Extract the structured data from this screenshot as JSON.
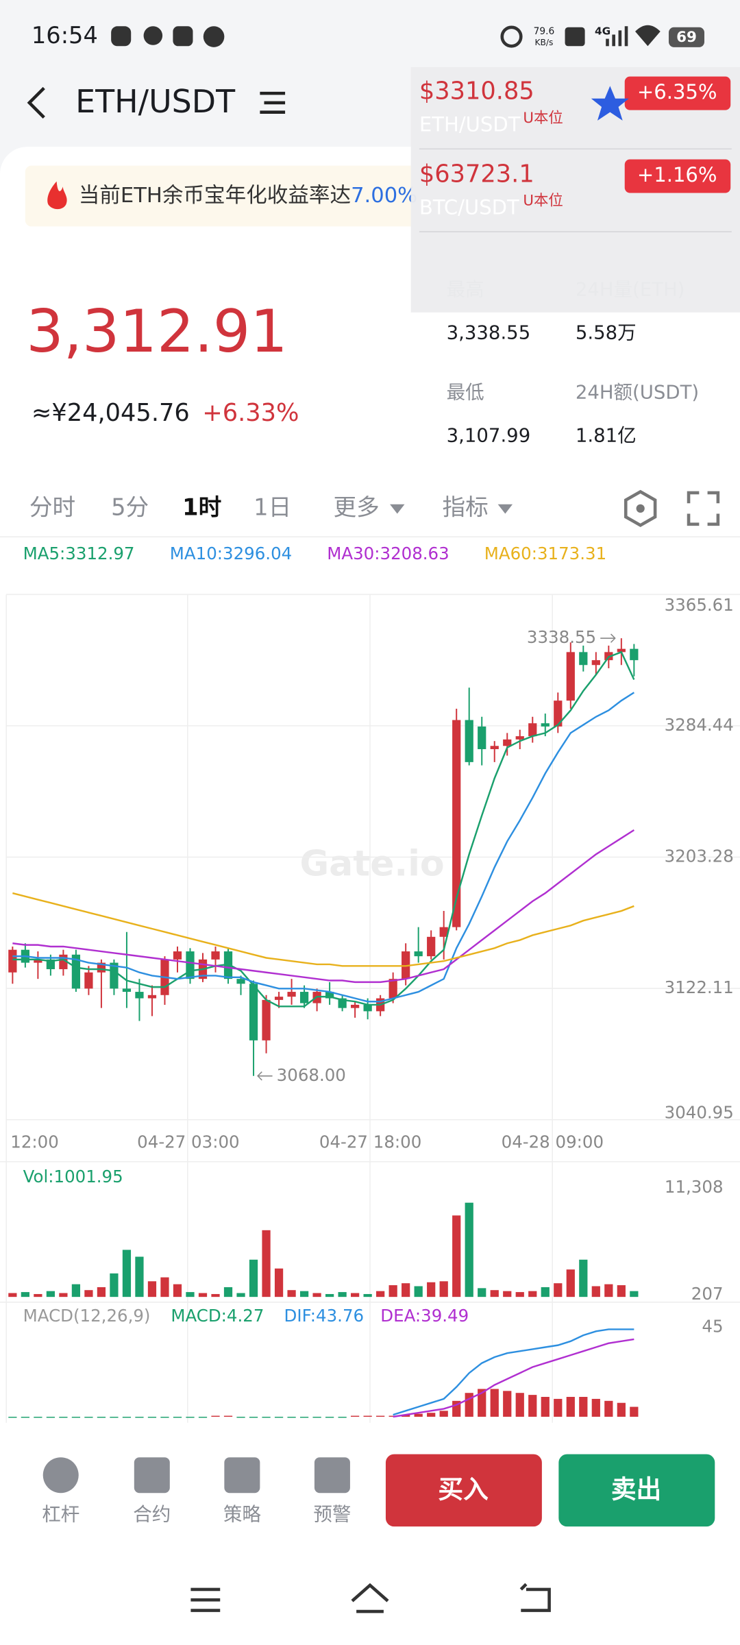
{
  "status_bar": {
    "time": "16:54",
    "net_speed": "79.6",
    "net_unit": "KB/s",
    "network": "4G",
    "battery": "69"
  },
  "header": {
    "title": "ETH/USDT"
  },
  "notice": {
    "text": "当前ETH余币宝年化收益率达",
    "rate": "7.00%"
  },
  "market_dropdown": {
    "items": [
      {
        "price": "$3310.85",
        "tag": "U本位",
        "pair": "ETH/USDT",
        "change": "+6.35%"
      },
      {
        "price": "$63723.1",
        "tag": "U本位",
        "pair": "BTC/USDT",
        "change": "+1.16%"
      }
    ]
  },
  "ticker": {
    "price": "3,312.91",
    "cny": "≈¥24,045.76",
    "change": "+6.33%"
  },
  "stats": [
    {
      "label": "最高",
      "value": "3,338.55"
    },
    {
      "label": "24H量(ETH)",
      "value": "5.58万"
    },
    {
      "label": "最低",
      "value": "3,107.99"
    },
    {
      "label": "24H额(USDT)",
      "value": "1.81亿"
    }
  ],
  "tabs": [
    "分时",
    "5分",
    "1时",
    "1日",
    "更多",
    "指标"
  ],
  "active_tab": 2,
  "chart_data": {
    "type": "candlestick",
    "watermark": "Gate.io",
    "ylim": [
      3040.95,
      3365.61
    ],
    "yticks": [
      3365.61,
      3284.44,
      3203.28,
      3122.11,
      3040.95
    ],
    "x_tick_labels": [
      "12:00",
      "04-27 03:00",
      "04-27 18:00",
      "04-28 09:00"
    ],
    "up_color": "#d0343c",
    "down_color": "#1aa06d",
    "open": [
      3132,
      3146,
      3138,
      3140,
      3134,
      3143,
      3122,
      3132,
      3138,
      3122,
      3120,
      3116,
      3118,
      3140,
      3145,
      3128,
      3140,
      3145,
      3128,
      3125,
      3090,
      3115,
      3117,
      3120,
      3113,
      3120,
      3116,
      3110,
      3112,
      3108,
      3116,
      3128,
      3145,
      3142,
      3154,
      3160,
      3288,
      3284,
      3270,
      3272,
      3276,
      3278,
      3286,
      3284,
      3300,
      3330,
      3322,
      3325,
      3330,
      3332
    ],
    "high": [
      3148,
      3150,
      3145,
      3143,
      3146,
      3146,
      3136,
      3140,
      3140,
      3157,
      3128,
      3124,
      3142,
      3148,
      3147,
      3144,
      3148,
      3147,
      3130,
      3127,
      3118,
      3120,
      3128,
      3124,
      3122,
      3126,
      3118,
      3114,
      3116,
      3118,
      3132,
      3150,
      3160,
      3158,
      3170,
      3295,
      3308,
      3290,
      3275,
      3280,
      3282,
      3290,
      3292,
      3305,
      3336,
      3334,
      3330,
      3334,
      3338.55,
      3335
    ],
    "low": [
      3125,
      3135,
      3128,
      3130,
      3130,
      3120,
      3118,
      3110,
      3118,
      3110,
      3102,
      3105,
      3112,
      3132,
      3125,
      3126,
      3132,
      3125,
      3118,
      3068,
      3082,
      3110,
      3112,
      3110,
      3108,
      3112,
      3108,
      3104,
      3103,
      3105,
      3113,
      3124,
      3138,
      3140,
      3140,
      3158,
      3260,
      3260,
      3262,
      3266,
      3270,
      3274,
      3278,
      3280,
      3295,
      3318,
      3316,
      3320,
      3322,
      3315
    ],
    "close": [
      3146,
      3138,
      3140,
      3134,
      3143,
      3122,
      3132,
      3138,
      3122,
      3120,
      3116,
      3118,
      3140,
      3145,
      3128,
      3140,
      3145,
      3128,
      3125,
      3090,
      3115,
      3117,
      3120,
      3113,
      3120,
      3116,
      3110,
      3112,
      3108,
      3116,
      3128,
      3145,
      3142,
      3154,
      3160,
      3288,
      3262,
      3270,
      3272,
      3276,
      3278,
      3286,
      3284,
      3300,
      3330,
      3322,
      3325,
      3330,
      3332,
      3325
    ],
    "high_mark": 3338.55,
    "low_mark": {
      "value": 3068,
      "label": "3068.00"
    },
    "series": [
      {
        "name": "MA5:3312.97",
        "color": "#1aa06d",
        "values": [
          3140,
          3140,
          3140,
          3139,
          3140,
          3135,
          3134,
          3134,
          3133,
          3127,
          3125,
          3123,
          3123,
          3128,
          3133,
          3134,
          3136,
          3137,
          3133,
          3124,
          3115,
          3111,
          3111,
          3111,
          3117,
          3117,
          3115,
          3114,
          3112,
          3112,
          3115,
          3122,
          3130,
          3139,
          3146,
          3178,
          3205,
          3229,
          3252,
          3271,
          3275,
          3278,
          3280,
          3285,
          3294,
          3306,
          3316,
          3327,
          3330,
          3313
        ]
      },
      {
        "name": "MA10:3296.04",
        "color": "#2d8fe0",
        "values": [
          3142,
          3142,
          3141,
          3141,
          3141,
          3140,
          3138,
          3137,
          3136,
          3135,
          3132,
          3130,
          3129,
          3128,
          3129,
          3130,
          3130,
          3129,
          3129,
          3126,
          3124,
          3122,
          3122,
          3122,
          3121,
          3120,
          3118,
          3116,
          3114,
          3114,
          3116,
          3118,
          3120,
          3124,
          3128,
          3147,
          3162,
          3179,
          3197,
          3213,
          3226,
          3240,
          3255,
          3268,
          3280,
          3285,
          3290,
          3294,
          3300,
          3305
        ]
      },
      {
        "name": "MA30:3208.63",
        "color": "#b02fd0",
        "values": [
          3150,
          3149,
          3149,
          3148,
          3148,
          3147,
          3146,
          3145,
          3144,
          3143,
          3142,
          3141,
          3140,
          3139,
          3138,
          3137,
          3136,
          3135,
          3134,
          3133,
          3132,
          3131,
          3130,
          3129,
          3128,
          3127,
          3127,
          3126,
          3126,
          3126,
          3127,
          3128,
          3130,
          3132,
          3134,
          3140,
          3146,
          3152,
          3158,
          3164,
          3170,
          3176,
          3181,
          3187,
          3193,
          3199,
          3205,
          3210,
          3215,
          3220
        ]
      },
      {
        "name": "MA60:3173.31",
        "color": "#e8b11c",
        "values": [
          3181,
          3179,
          3177,
          3175,
          3173,
          3171,
          3169,
          3167,
          3165,
          3163,
          3161,
          3159,
          3157,
          3155,
          3153,
          3151,
          3149,
          3147,
          3145,
          3143,
          3141,
          3140,
          3139,
          3138,
          3137,
          3137,
          3136,
          3136,
          3136,
          3136,
          3136,
          3136,
          3137,
          3138,
          3139,
          3141,
          3143,
          3145,
          3147,
          3150,
          3152,
          3155,
          3157,
          3159,
          3161,
          3164,
          3166,
          3168,
          3170,
          3173
        ]
      }
    ],
    "volume": {
      "label": "Vol:1001.95",
      "ylim": [
        207,
        11308
      ],
      "yticks": [
        {
          "value": 11308,
          "label": "11,308"
        },
        207
      ],
      "values": [
        600,
        700,
        500,
        800,
        600,
        1500,
        900,
        1200,
        2600,
        5000,
        4300,
        1800,
        2200,
        1500,
        700,
        600,
        500,
        1200,
        600,
        4000,
        7000,
        3100,
        900,
        800,
        600,
        500,
        700,
        600,
        500,
        800,
        1400,
        1600,
        1300,
        1700,
        1800,
        8500,
        9800,
        1100,
        900,
        800,
        700,
        800,
        1200,
        1600,
        3000,
        4000,
        1300,
        1500,
        1400,
        800
      ]
    },
    "macd": {
      "labels": [
        "MACD(12,26,9)",
        "MACD:4.27",
        "DIF:43.76",
        "DEA:39.49"
      ],
      "ylim": [
        -3,
        45
      ],
      "yticks": [
        45
      ],
      "hist": [
        -0.5,
        -0.5,
        -0.5,
        -0.5,
        -0.5,
        -0.5,
        -0.5,
        -0.5,
        -0.5,
        -0.5,
        -0.5,
        -0.5,
        -0.5,
        -0.5,
        -0.5,
        -0.5,
        0.5,
        0.5,
        -0.5,
        -0.5,
        -0.5,
        -0.5,
        -0.5,
        -0.5,
        -0.5,
        -0.5,
        -0.5,
        0.5,
        0.5,
        0.5,
        0.5,
        1,
        1.5,
        2,
        3,
        8,
        12,
        14,
        14,
        13,
        12,
        11,
        10,
        9,
        10,
        10,
        9,
        8,
        7,
        5
      ],
      "dif": [
        null,
        null,
        null,
        null,
        null,
        null,
        null,
        null,
        null,
        null,
        null,
        null,
        null,
        null,
        null,
        null,
        null,
        null,
        null,
        null,
        null,
        null,
        null,
        null,
        null,
        null,
        null,
        null,
        null,
        null,
        1,
        3,
        5,
        7,
        9,
        15,
        22,
        27,
        30,
        32,
        33,
        34,
        35,
        36,
        38,
        41,
        43,
        44,
        44,
        44
      ],
      "dea": [
        null,
        null,
        null,
        null,
        null,
        null,
        null,
        null,
        null,
        null,
        null,
        null,
        null,
        null,
        null,
        null,
        null,
        null,
        null,
        null,
        null,
        null,
        null,
        null,
        null,
        null,
        null,
        null,
        null,
        null,
        0,
        1,
        2,
        3,
        4,
        6,
        9,
        12,
        16,
        19,
        22,
        25,
        27,
        29,
        31,
        33,
        35,
        37,
        38,
        39
      ],
      "dif_color": "#2d8fe0",
      "dea_color": "#b02fd0"
    }
  },
  "bottom_bar": {
    "tools": [
      "杠杆",
      "合约",
      "策略",
      "预警"
    ],
    "buy": "买入",
    "sell": "卖出"
  }
}
